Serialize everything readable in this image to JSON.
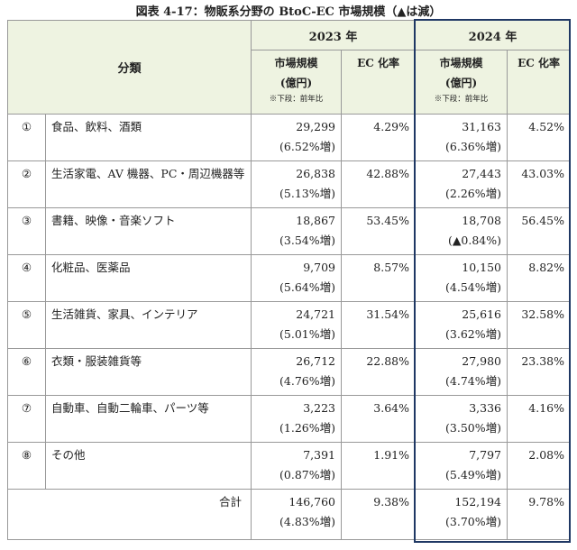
{
  "title": "図表 4-17：物販系分野の BtoC-EC 市場規模（▲は減）",
  "header": {
    "category": "分類",
    "groups": [
      {
        "year": "2023 年",
        "size_label": "市場規模",
        "unit": "(億円)",
        "note": "※下段：前年比",
        "ec_label": "EC 化率"
      },
      {
        "year": "2024 年",
        "size_label": "市場規模",
        "unit": "(億円)",
        "note": "※下段：前年比",
        "ec_label": "EC 化率"
      }
    ]
  },
  "table": {
    "rows": [
      {
        "num": "①",
        "category": "食品、飲料、酒類",
        "size_2023": "29,299",
        "change_2023": "(6.52%増)",
        "ec_2023": "4.29%",
        "size_2024": "31,163",
        "change_2024": "(6.36%増)",
        "ec_2024": "4.52%"
      },
      {
        "num": "②",
        "category": "生活家電、AV 機器、PC・周辺機器等",
        "size_2023": "26,838",
        "change_2023": "(5.13%増)",
        "ec_2023": "42.88%",
        "size_2024": "27,443",
        "change_2024": "(2.26%増)",
        "ec_2024": "43.03%"
      },
      {
        "num": "③",
        "category": "書籍、映像・音楽ソフト",
        "size_2023": "18,867",
        "change_2023": "(3.54%増)",
        "ec_2023": "53.45%",
        "size_2024": "18,708",
        "change_2024": "(▲0.84%)",
        "ec_2024": "56.45%"
      },
      {
        "num": "④",
        "category": "化粧品、医薬品",
        "size_2023": "9,709",
        "change_2023": "(5.64%増)",
        "ec_2023": "8.57%",
        "size_2024": "10,150",
        "change_2024": "(4.54%増)",
        "ec_2024": "8.82%"
      },
      {
        "num": "⑤",
        "category": "生活雑貨、家具、インテリア",
        "size_2023": "24,721",
        "change_2023": "(5.01%増)",
        "ec_2023": "31.54%",
        "size_2024": "25,616",
        "change_2024": "(3.62%増)",
        "ec_2024": "32.58%"
      },
      {
        "num": "⑥",
        "category": "衣類・服装雑貨等",
        "size_2023": "26,712",
        "change_2023": "(4.76%増)",
        "ec_2023": "22.88%",
        "size_2024": "27,980",
        "change_2024": "(4.74%増)",
        "ec_2024": "23.38%"
      },
      {
        "num": "⑦",
        "category": "自動車、自動二輪車、パーツ等",
        "size_2023": "3,223",
        "change_2023": "(1.26%増)",
        "ec_2023": "3.64%",
        "size_2024": "3,336",
        "change_2024": "(3.50%増)",
        "ec_2024": "4.16%"
      },
      {
        "num": "⑧",
        "category": "その他",
        "size_2023": "7,391",
        "change_2023": "(0.87%増)",
        "ec_2023": "1.91%",
        "size_2024": "7,797",
        "change_2024": "(5.49%増)",
        "ec_2024": "2.08%"
      }
    ],
    "total": {
      "label": "合計",
      "size_2023": "146,760",
      "change_2023": "(4.83%増)",
      "ec_2023": "9.38%",
      "size_2024": "152,194",
      "change_2024": "(3.70%増)",
      "ec_2024": "9.78%"
    }
  }
}
